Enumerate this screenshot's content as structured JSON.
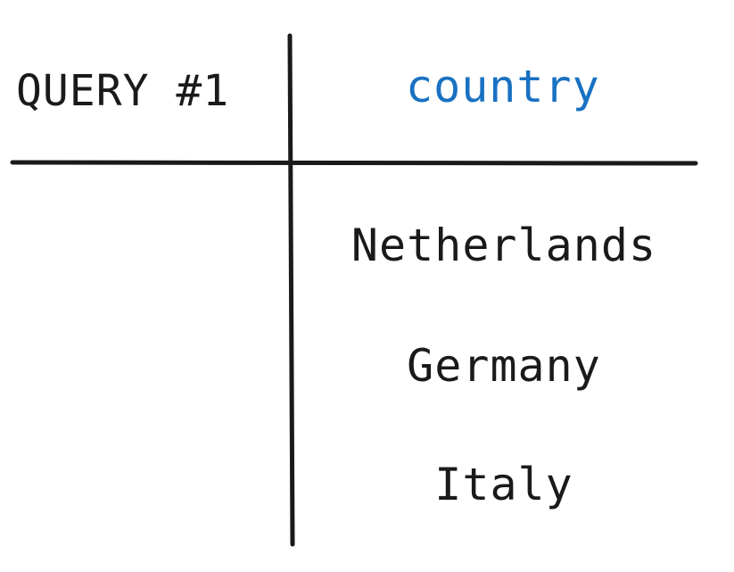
{
  "query_label": "QUERY #1",
  "column_header": "country",
  "rows": [
    "Netherlands",
    "Germany",
    "Italy"
  ],
  "colors": {
    "text": "#1a1a1a",
    "header": "#1971c2",
    "lines": "#1a1a1a"
  }
}
